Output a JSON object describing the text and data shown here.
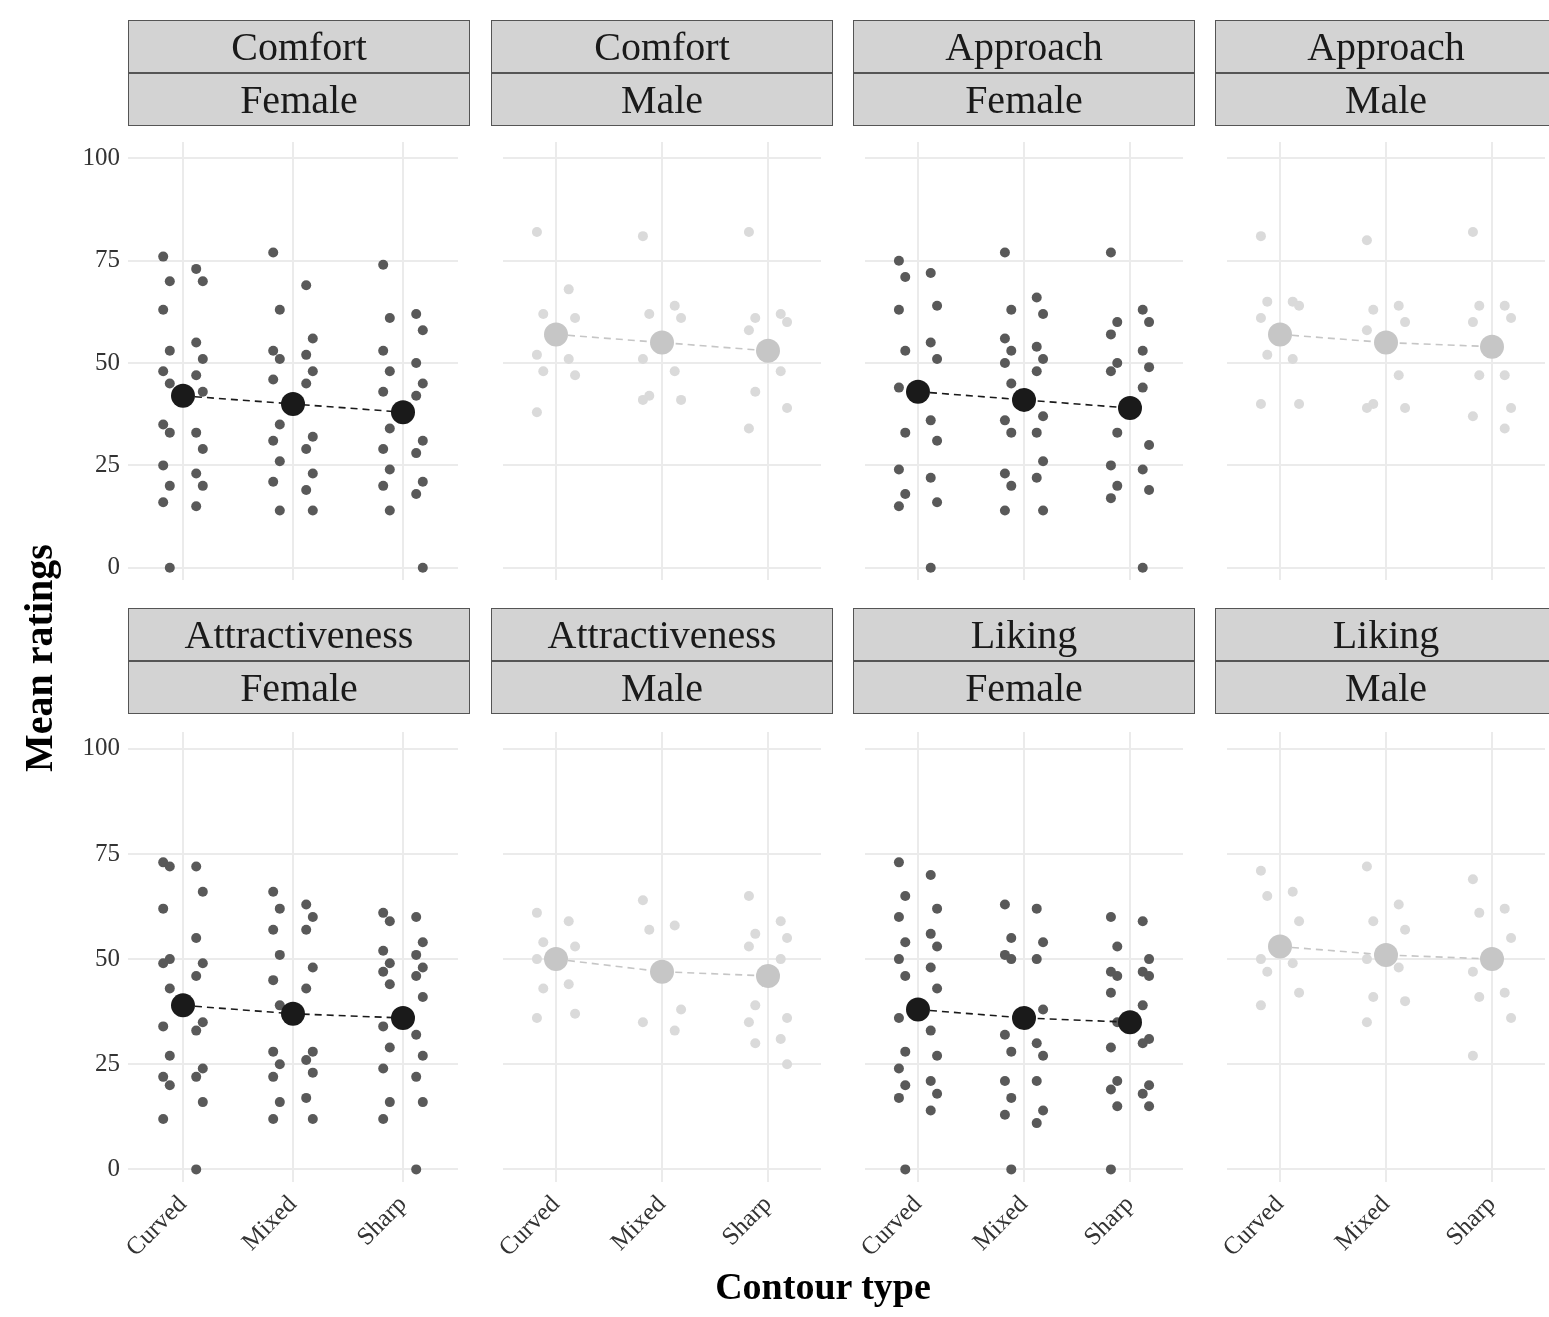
{
  "chart_data": [
    {
      "type": "scatter",
      "title": "Comfort",
      "subtitle": "Female",
      "ylabel": "Mean ratings",
      "categories": [
        "Curved",
        "Mixed",
        "Sharp"
      ],
      "ylim": [
        -3,
        104
      ],
      "yticks": [
        0,
        25,
        50,
        75,
        100
      ],
      "grid": true,
      "tick_labels": "y",
      "series": [
        {
          "marker": "circle",
          "color": "#595959",
          "x": [
            "Curved",
            "Curved",
            "Curved",
            "Curved",
            "Curved",
            "Curved",
            "Curved",
            "Curved",
            "Curved",
            "Curved",
            "Curved",
            "Curved",
            "Curved",
            "Curved",
            "Curved",
            "Curved",
            "Curved",
            "Curved",
            "Curved",
            "Curved",
            "Curved",
            "Curved",
            "Curved"
          ],
          "values": [
            76,
            73,
            70,
            70,
            63,
            55,
            53,
            51,
            48,
            47,
            45,
            43,
            35,
            33,
            33,
            29,
            25,
            23,
            20,
            20,
            16,
            15,
            0
          ]
        },
        {
          "marker": "circle",
          "color": "#595959",
          "x": [
            "Mixed",
            "Mixed",
            "Mixed",
            "Mixed",
            "Mixed",
            "Mixed",
            "Mixed",
            "Mixed",
            "Mixed",
            "Mixed",
            "Mixed",
            "Mixed",
            "Mixed",
            "Mixed",
            "Mixed",
            "Mixed",
            "Mixed",
            "Mixed",
            "Mixed",
            "Mixed"
          ],
          "values": [
            77,
            69,
            63,
            56,
            53,
            52,
            51,
            48,
            46,
            45,
            35,
            32,
            31,
            29,
            26,
            23,
            21,
            19,
            14,
            14
          ]
        },
        {
          "marker": "circle",
          "color": "#595959",
          "x": [
            "Sharp",
            "Sharp",
            "Sharp",
            "Sharp",
            "Sharp",
            "Sharp",
            "Sharp",
            "Sharp",
            "Sharp",
            "Sharp",
            "Sharp",
            "Sharp",
            "Sharp",
            "Sharp",
            "Sharp",
            "Sharp",
            "Sharp",
            "Sharp",
            "Sharp",
            "Sharp"
          ],
          "values": [
            74,
            62,
            61,
            58,
            53,
            50,
            48,
            45,
            43,
            42,
            34,
            31,
            29,
            28,
            24,
            21,
            20,
            18,
            14,
            0
          ]
        },
        {
          "type": "line",
          "marker": "circle",
          "line_style": "dashed",
          "color": "#1a1a1a",
          "values": [
            42,
            40,
            38
          ]
        }
      ]
    },
    {
      "type": "scatter",
      "title": "Comfort",
      "subtitle": "Male",
      "categories": [
        "Curved",
        "Mixed",
        "Sharp"
      ],
      "yticks": [
        0,
        25,
        50,
        75,
        100
      ],
      "grid": true,
      "tick_labels": false,
      "series": [
        {
          "marker": "circle",
          "color": "#dadada",
          "x": [
            "Curved",
            "Curved",
            "Curved",
            "Curved",
            "Curved",
            "Curved",
            "Curved",
            "Curved",
            "Curved"
          ],
          "values": [
            82,
            68,
            62,
            61,
            52,
            51,
            48,
            47,
            38
          ]
        },
        {
          "marker": "circle",
          "color": "#dadada",
          "x": [
            "Mixed",
            "Mixed",
            "Mixed",
            "Mixed",
            "Mixed",
            "Mixed",
            "Mixed",
            "Mixed",
            "Mixed"
          ],
          "values": [
            81,
            64,
            62,
            61,
            51,
            48,
            42,
            41,
            41
          ]
        },
        {
          "marker": "circle",
          "color": "#dadada",
          "x": [
            "Sharp",
            "Sharp",
            "Sharp",
            "Sharp",
            "Sharp",
            "Sharp",
            "Sharp",
            "Sharp",
            "Sharp"
          ],
          "values": [
            82,
            62,
            61,
            60,
            58,
            48,
            43,
            39,
            34
          ]
        },
        {
          "type": "line",
          "marker": "circle",
          "line_style": "dashed",
          "color": "#c6c6c6",
          "values": [
            57,
            55,
            53
          ]
        }
      ]
    },
    {
      "type": "scatter",
      "title": "Approach",
      "subtitle": "Female",
      "categories": [
        "Curved",
        "Mixed",
        "Sharp"
      ],
      "yticks": [
        0,
        25,
        50,
        75,
        100
      ],
      "grid": true,
      "tick_labels": false,
      "series": [
        {
          "marker": "circle",
          "color": "#595959",
          "x": [
            "Curved",
            "Curved",
            "Curved",
            "Curved",
            "Curved",
            "Curved",
            "Curved",
            "Curved",
            "Curved",
            "Curved",
            "Curved",
            "Curved",
            "Curved",
            "Curved",
            "Curved",
            "Curved",
            "Curved",
            "Curved"
          ],
          "values": [
            75,
            72,
            71,
            64,
            63,
            55,
            53,
            51,
            44,
            36,
            33,
            31,
            24,
            22,
            18,
            16,
            15,
            0
          ]
        },
        {
          "marker": "circle",
          "color": "#595959",
          "x": [
            "Mixed",
            "Mixed",
            "Mixed",
            "Mixed",
            "Mixed",
            "Mixed",
            "Mixed",
            "Mixed",
            "Mixed",
            "Mixed",
            "Mixed",
            "Mixed",
            "Mixed",
            "Mixed",
            "Mixed",
            "Mixed",
            "Mixed",
            "Mixed",
            "Mixed",
            "Mixed",
            "Mixed"
          ],
          "values": [
            77,
            66,
            63,
            62,
            56,
            54,
            53,
            51,
            50,
            48,
            45,
            37,
            36,
            33,
            33,
            26,
            23,
            22,
            20,
            14,
            14
          ]
        },
        {
          "marker": "circle",
          "color": "#595959",
          "x": [
            "Sharp",
            "Sharp",
            "Sharp",
            "Sharp",
            "Sharp",
            "Sharp",
            "Sharp",
            "Sharp",
            "Sharp",
            "Sharp",
            "Sharp",
            "Sharp",
            "Sharp",
            "Sharp",
            "Sharp",
            "Sharp",
            "Sharp",
            "Sharp"
          ],
          "values": [
            77,
            63,
            60,
            60,
            57,
            53,
            50,
            49,
            48,
            44,
            33,
            30,
            25,
            24,
            20,
            19,
            17,
            0
          ]
        },
        {
          "type": "line",
          "marker": "circle",
          "line_style": "dashed",
          "color": "#1a1a1a",
          "values": [
            43,
            41,
            39
          ]
        }
      ]
    },
    {
      "type": "scatter",
      "title": "Approach",
      "subtitle": "Male",
      "categories": [
        "Curved",
        "Mixed",
        "Sharp"
      ],
      "yticks": [
        0,
        25,
        50,
        75,
        100
      ],
      "grid": true,
      "tick_labels": false,
      "series": [
        {
          "marker": "circle",
          "color": "#dadada",
          "x": [
            "Curved",
            "Curved",
            "Curved",
            "Curved",
            "Curved",
            "Curved",
            "Curved",
            "Curved",
            "Curved"
          ],
          "values": [
            81,
            65,
            65,
            64,
            61,
            51,
            52,
            40,
            40
          ]
        },
        {
          "marker": "circle",
          "color": "#dadada",
          "x": [
            "Mixed",
            "Mixed",
            "Mixed",
            "Mixed",
            "Mixed",
            "Mixed",
            "Mixed",
            "Mixed",
            "Mixed"
          ],
          "values": [
            80,
            64,
            63,
            60,
            58,
            47,
            40,
            39,
            39
          ]
        },
        {
          "marker": "circle",
          "color": "#dadada",
          "x": [
            "Sharp",
            "Sharp",
            "Sharp",
            "Sharp",
            "Sharp",
            "Sharp",
            "Sharp",
            "Sharp",
            "Sharp",
            "Sharp"
          ],
          "values": [
            82,
            64,
            64,
            61,
            60,
            47,
            47,
            39,
            37,
            34
          ]
        },
        {
          "type": "line",
          "marker": "circle",
          "line_style": "dashed",
          "color": "#c6c6c6",
          "values": [
            57,
            55,
            54
          ]
        }
      ]
    },
    {
      "type": "scatter",
      "title": "Attractiveness",
      "subtitle": "Female",
      "categories": [
        "Curved",
        "Mixed",
        "Sharp"
      ],
      "ylim": [
        -3,
        104
      ],
      "yticks": [
        0,
        25,
        50,
        75,
        100
      ],
      "grid": true,
      "series": [
        {
          "marker": "circle",
          "color": "#595959",
          "x": [
            "Curved",
            "Curved",
            "Curved",
            "Curved",
            "Curved",
            "Curved",
            "Curved",
            "Curved",
            "Curved",
            "Curved",
            "Curved",
            "Curved",
            "Curved",
            "Curved",
            "Curved",
            "Curved",
            "Curved",
            "Curved",
            "Curved",
            "Curved",
            "Curved",
            "Curved"
          ],
          "values": [
            73,
            72,
            72,
            66,
            62,
            55,
            50,
            49,
            49,
            46,
            43,
            35,
            34,
            33,
            27,
            24,
            22,
            22,
            20,
            16,
            12,
            0
          ]
        },
        {
          "marker": "circle",
          "color": "#595959",
          "x": [
            "Mixed",
            "Mixed",
            "Mixed",
            "Mixed",
            "Mixed",
            "Mixed",
            "Mixed",
            "Mixed",
            "Mixed",
            "Mixed",
            "Mixed",
            "Mixed",
            "Mixed",
            "Mixed",
            "Mixed",
            "Mixed",
            "Mixed",
            "Mixed",
            "Mixed",
            "Mixed",
            "Mixed"
          ],
          "values": [
            66,
            63,
            62,
            60,
            57,
            57,
            51,
            48,
            45,
            43,
            39,
            28,
            28,
            26,
            25,
            23,
            22,
            17,
            16,
            12,
            12
          ]
        },
        {
          "marker": "circle",
          "color": "#595959",
          "x": [
            "Sharp",
            "Sharp",
            "Sharp",
            "Sharp",
            "Sharp",
            "Sharp",
            "Sharp",
            "Sharp",
            "Sharp",
            "Sharp",
            "Sharp",
            "Sharp",
            "Sharp",
            "Sharp",
            "Sharp",
            "Sharp",
            "Sharp",
            "Sharp",
            "Sharp",
            "Sharp",
            "Sharp",
            "Sharp"
          ],
          "values": [
            61,
            60,
            59,
            54,
            52,
            51,
            49,
            48,
            47,
            46,
            44,
            41,
            34,
            32,
            29,
            27,
            24,
            22,
            16,
            16,
            12,
            0
          ]
        },
        {
          "type": "line",
          "marker": "circle",
          "line_style": "dashed",
          "color": "#1a1a1a",
          "values": [
            39,
            37,
            36
          ]
        }
      ]
    },
    {
      "type": "scatter",
      "title": "Attractiveness",
      "subtitle": "Male",
      "xlabel": "Contour type",
      "categories": [
        "Curved",
        "Mixed",
        "Sharp"
      ],
      "yticks": [
        0,
        25,
        50,
        75,
        100
      ],
      "grid": true,
      "tick_labels": "x",
      "series": [
        {
          "marker": "circle",
          "color": "#dadada",
          "x": [
            "Curved",
            "Curved",
            "Curved",
            "Curved",
            "Curved",
            "Curved",
            "Curved",
            "Curved",
            "Curved"
          ],
          "values": [
            61,
            59,
            54,
            53,
            50,
            44,
            43,
            37,
            36
          ]
        },
        {
          "marker": "circle",
          "color": "#dadada",
          "x": [
            "Mixed",
            "Mixed",
            "Mixed",
            "Mixed",
            "Mixed",
            "Mixed"
          ],
          "values": [
            64,
            58,
            57,
            38,
            35,
            33
          ]
        },
        {
          "marker": "circle",
          "color": "#dadada",
          "x": [
            "Sharp",
            "Sharp",
            "Sharp",
            "Sharp",
            "Sharp",
            "Sharp",
            "Sharp",
            "Sharp",
            "Sharp",
            "Sharp",
            "Sharp",
            "Sharp"
          ],
          "values": [
            65,
            59,
            56,
            55,
            53,
            50,
            39,
            36,
            35,
            31,
            30,
            25
          ]
        },
        {
          "type": "line",
          "marker": "circle",
          "line_style": "dashed",
          "color": "#c6c6c6",
          "values": [
            50,
            47,
            46
          ]
        }
      ]
    },
    {
      "type": "scatter",
      "title": "Liking",
      "subtitle": "Female",
      "categories": [
        "Curved",
        "Mixed",
        "Sharp"
      ],
      "yticks": [
        0,
        25,
        50,
        75,
        100
      ],
      "grid": true,
      "tick_labels": "x",
      "series": [
        {
          "marker": "circle",
          "color": "#595959",
          "x": [
            "Curved",
            "Curved",
            "Curved",
            "Curved",
            "Curved",
            "Curved",
            "Curved",
            "Curved",
            "Curved",
            "Curved",
            "Curved",
            "Curved",
            "Curved",
            "Curved",
            "Curved",
            "Curved",
            "Curved",
            "Curved",
            "Curved",
            "Curved",
            "Curved",
            "Curved",
            "Curved"
          ],
          "values": [
            73,
            70,
            65,
            62,
            60,
            56,
            54,
            53,
            50,
            48,
            46,
            43,
            36,
            33,
            28,
            27,
            24,
            21,
            20,
            18,
            17,
            14,
            0
          ]
        },
        {
          "marker": "circle",
          "color": "#595959",
          "x": [
            "Mixed",
            "Mixed",
            "Mixed",
            "Mixed",
            "Mixed",
            "Mixed",
            "Mixed",
            "Mixed",
            "Mixed",
            "Mixed",
            "Mixed",
            "Mixed",
            "Mixed",
            "Mixed",
            "Mixed",
            "Mixed",
            "Mixed",
            "Mixed",
            "Mixed"
          ],
          "values": [
            63,
            62,
            55,
            54,
            51,
            50,
            50,
            38,
            32,
            30,
            28,
            27,
            21,
            21,
            17,
            14,
            13,
            11,
            0
          ]
        },
        {
          "marker": "circle",
          "color": "#595959",
          "x": [
            "Sharp",
            "Sharp",
            "Sharp",
            "Sharp",
            "Sharp",
            "Sharp",
            "Sharp",
            "Sharp",
            "Sharp",
            "Sharp",
            "Sharp",
            "Sharp",
            "Sharp",
            "Sharp",
            "Sharp",
            "Sharp",
            "Sharp",
            "Sharp",
            "Sharp",
            "Sharp",
            "Sharp"
          ],
          "values": [
            60,
            59,
            53,
            50,
            47,
            47,
            46,
            46,
            42,
            39,
            35,
            31,
            29,
            30,
            21,
            20,
            19,
            18,
            15,
            15,
            0
          ]
        },
        {
          "type": "line",
          "marker": "circle",
          "line_style": "dashed",
          "color": "#1a1a1a",
          "values": [
            38,
            36,
            35
          ]
        }
      ]
    },
    {
      "type": "scatter",
      "title": "Liking",
      "subtitle": "Male",
      "categories": [
        "Curved",
        "Mixed",
        "Sharp"
      ],
      "yticks": [
        0,
        25,
        50,
        75,
        100
      ],
      "grid": true,
      "tick_labels": "x",
      "series": [
        {
          "marker": "circle",
          "color": "#dadada",
          "x": [
            "Curved",
            "Curved",
            "Curved",
            "Curved",
            "Curved",
            "Curved",
            "Curved",
            "Curved",
            "Curved"
          ],
          "values": [
            71,
            66,
            65,
            59,
            50,
            49,
            47,
            42,
            39
          ]
        },
        {
          "marker": "circle",
          "color": "#dadada",
          "x": [
            "Mixed",
            "Mixed",
            "Mixed",
            "Mixed",
            "Mixed",
            "Mixed",
            "Mixed",
            "Mixed",
            "Mixed"
          ],
          "values": [
            72,
            63,
            59,
            57,
            50,
            48,
            41,
            40,
            35
          ]
        },
        {
          "marker": "circle",
          "color": "#dadada",
          "x": [
            "Sharp",
            "Sharp",
            "Sharp",
            "Sharp",
            "Sharp",
            "Sharp",
            "Sharp",
            "Sharp",
            "Sharp"
          ],
          "values": [
            69,
            62,
            61,
            55,
            47,
            42,
            41,
            36,
            27
          ]
        },
        {
          "type": "line",
          "marker": "circle",
          "line_style": "dashed",
          "color": "#c6c6c6",
          "values": [
            53,
            51,
            50
          ]
        }
      ]
    }
  ]
}
